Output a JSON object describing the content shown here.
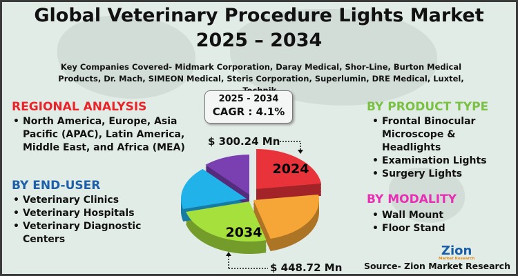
{
  "title": {
    "line1": "Global Veterinary Procedure Lights Market",
    "line2": "2025 – 2034"
  },
  "companies": "Key Companies Covered- Midmark Corporation, Daray Medical, Shor-Line, Burton Medical Products, Dr. Mach, SIMEON Medical, Steris Corporation, Superlumin, DRE Medical, Luxtel, Technik.",
  "cagr": {
    "period": "2025 - 2034",
    "value": "CAGR : 4.1%"
  },
  "pie": {
    "label_2024": "2024",
    "label_2034": "2034",
    "value_2024": "$ 300.24 Mn",
    "value_2034": "$ 448.72 Mn",
    "colors": [
      "#e8333a",
      "#f6a636",
      "#a6e03c",
      "#22b2ea",
      "#7a3fb0"
    ]
  },
  "regional": {
    "heading": "REGIONAL ANALYSIS",
    "color": "#e8232a",
    "items": [
      "North America, Europe, Asia Pacific (APAC), Latin America, Middle East, and Africa (MEA)"
    ]
  },
  "end_user": {
    "heading": "BY END-USER",
    "color": "#1d5fa8",
    "items": [
      "Veterinary Clinics",
      "Veterinary Hospitals",
      "Veterinary Diagnostic Centers"
    ]
  },
  "product": {
    "heading": "BY PRODUCT TYPE",
    "color": "#7ac143",
    "items": [
      "Frontal Binocular Microscope & Headlights",
      "Examination Lights",
      "Surgery Lights"
    ]
  },
  "modality": {
    "heading": "BY MODALITY",
    "color": "#e62fb4",
    "items": [
      "Wall Mount",
      "Floor Stand"
    ]
  },
  "logo": {
    "name": "Zion",
    "sub": "Market Research"
  },
  "source": "Source- Zion Market Research"
}
